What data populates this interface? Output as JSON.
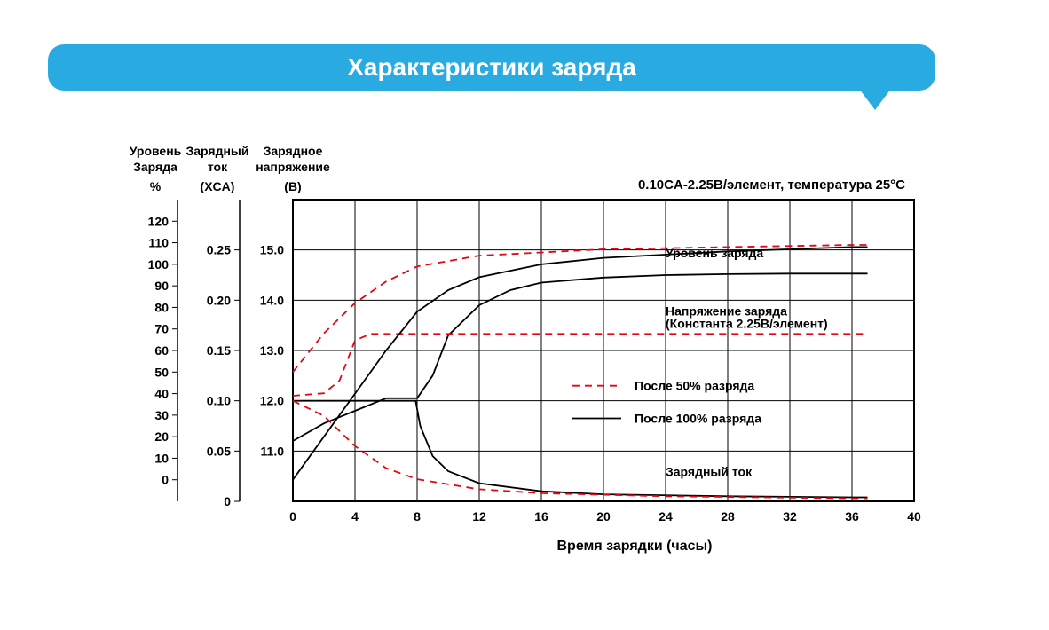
{
  "banner_title": "Характеристики заряда",
  "conditions": "0.10CA-2.25В/элемент, температура 25°С",
  "x_axis": {
    "label": "Время зарядки (часы)",
    "ticks": [
      0,
      4,
      8,
      12,
      16,
      20,
      24,
      28,
      32,
      36,
      40
    ],
    "min": 0,
    "max": 40
  },
  "y_charge_level": {
    "header1": "Уровень",
    "header2": "Заряда",
    "unit": "%",
    "ticks": [
      0,
      10,
      20,
      30,
      40,
      50,
      60,
      70,
      80,
      90,
      100,
      110,
      120
    ]
  },
  "y_charge_current": {
    "header1": "Зарядный",
    "header2": "ток",
    "unit": "(XCA)",
    "ticks": [
      0,
      0.05,
      0.1,
      0.15,
      0.2,
      0.25
    ]
  },
  "y_charge_voltage": {
    "header1": "Зарядное",
    "header2": "напряжение",
    "unit": "(В)",
    "ticks": [
      11.0,
      12.0,
      13.0,
      14.0,
      15.0
    ]
  },
  "annotations": {
    "charge_level": "Уровень заряда",
    "charge_voltage_l1": "Напряжение заряда",
    "charge_voltage_l2": "(Константа 2.25В/элемент)",
    "charge_current": "Зарядный ток"
  },
  "legend": {
    "after50": "После 50% разряда",
    "after100": "После 100% разряда"
  },
  "colors": {
    "banner": "#29abe2",
    "grid": "#000000",
    "solid": "#000000",
    "dashed": "#e30613",
    "bg": "#ffffff"
  },
  "plot": {
    "grid_x_count": 11,
    "grid_y_count": 6,
    "style": {
      "dash": "8 6",
      "solid_width": 1.8,
      "dashed_width": 1.8,
      "font_family": "Arial",
      "tick_fontsize": 14,
      "header_fontsize": 14,
      "axis_label_fontsize": 16,
      "cond_fontsize": 15,
      "annot_fontsize": 14
    },
    "curves_voltage": {
      "solid_100": [
        [
          0,
          11.2
        ],
        [
          2,
          11.55
        ],
        [
          4,
          11.8
        ],
        [
          6,
          12.05
        ],
        [
          8,
          12.05
        ],
        [
          9,
          12.5
        ],
        [
          10,
          13.3
        ],
        [
          12,
          13.9
        ],
        [
          14,
          14.2
        ],
        [
          16,
          14.35
        ],
        [
          20,
          14.45
        ],
        [
          24,
          14.5
        ],
        [
          28,
          14.52
        ],
        [
          32,
          14.53
        ],
        [
          36,
          14.53
        ],
        [
          37,
          14.53
        ]
      ],
      "dashed_50": [
        [
          0,
          12.1
        ],
        [
          2,
          12.15
        ],
        [
          3,
          12.4
        ],
        [
          4,
          13.2
        ],
        [
          5,
          13.33
        ],
        [
          8,
          13.33
        ],
        [
          12,
          13.33
        ],
        [
          20,
          13.33
        ],
        [
          36,
          13.33
        ],
        [
          37,
          13.33
        ]
      ]
    },
    "curves_current": {
      "solid_100": [
        [
          0,
          0.1
        ],
        [
          4,
          0.1
        ],
        [
          7.9,
          0.1
        ],
        [
          8.2,
          0.075
        ],
        [
          9,
          0.045
        ],
        [
          10,
          0.03
        ],
        [
          12,
          0.018
        ],
        [
          16,
          0.01
        ],
        [
          20,
          0.007
        ],
        [
          28,
          0.005
        ],
        [
          36,
          0.004
        ],
        [
          37,
          0.004
        ]
      ],
      "dashed_50": [
        [
          0,
          0.1
        ],
        [
          2,
          0.085
        ],
        [
          4,
          0.055
        ],
        [
          6,
          0.033
        ],
        [
          8,
          0.022
        ],
        [
          12,
          0.012
        ],
        [
          16,
          0.008
        ],
        [
          24,
          0.005
        ],
        [
          36,
          0.003
        ],
        [
          37,
          0.003
        ]
      ]
    },
    "curves_level": {
      "solid_100": [
        [
          0,
          0
        ],
        [
          2,
          20
        ],
        [
          4,
          40
        ],
        [
          6,
          60
        ],
        [
          8,
          78
        ],
        [
          10,
          88
        ],
        [
          12,
          94
        ],
        [
          16,
          100
        ],
        [
          20,
          103
        ],
        [
          28,
          106
        ],
        [
          36,
          108
        ],
        [
          37,
          108
        ]
      ],
      "dashed_50": [
        [
          0,
          50
        ],
        [
          2,
          68
        ],
        [
          4,
          82
        ],
        [
          6,
          92
        ],
        [
          8,
          99
        ],
        [
          12,
          104
        ],
        [
          20,
          107
        ],
        [
          36,
          109
        ],
        [
          37,
          109
        ]
      ]
    }
  }
}
